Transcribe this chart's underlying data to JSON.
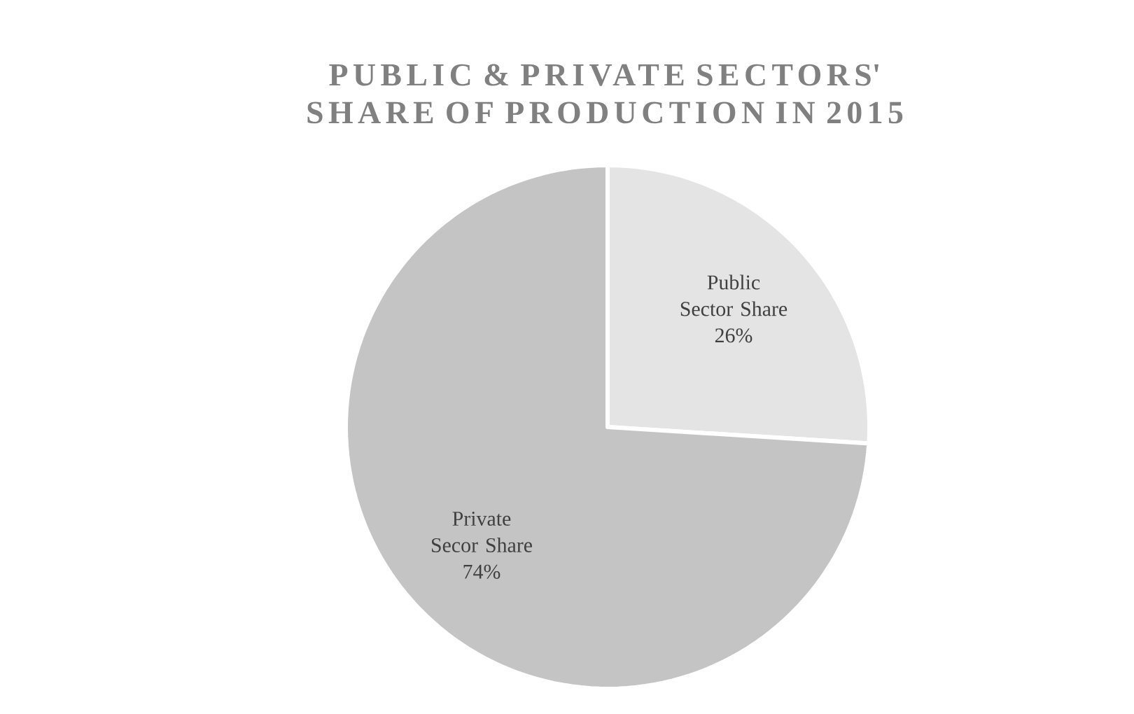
{
  "chart_data": {
    "type": "pie",
    "title": "PUBLIC & PRIVATE SECTORS' SHARE OF PRODUCTION IN 2015",
    "categories": [
      "Public Sector Share",
      "Private Secor Share"
    ],
    "values": [
      26,
      74
    ],
    "value_labels": [
      "26%",
      "74%"
    ],
    "colors": [
      "#e4e4e4",
      "#c4c4c4"
    ]
  }
}
